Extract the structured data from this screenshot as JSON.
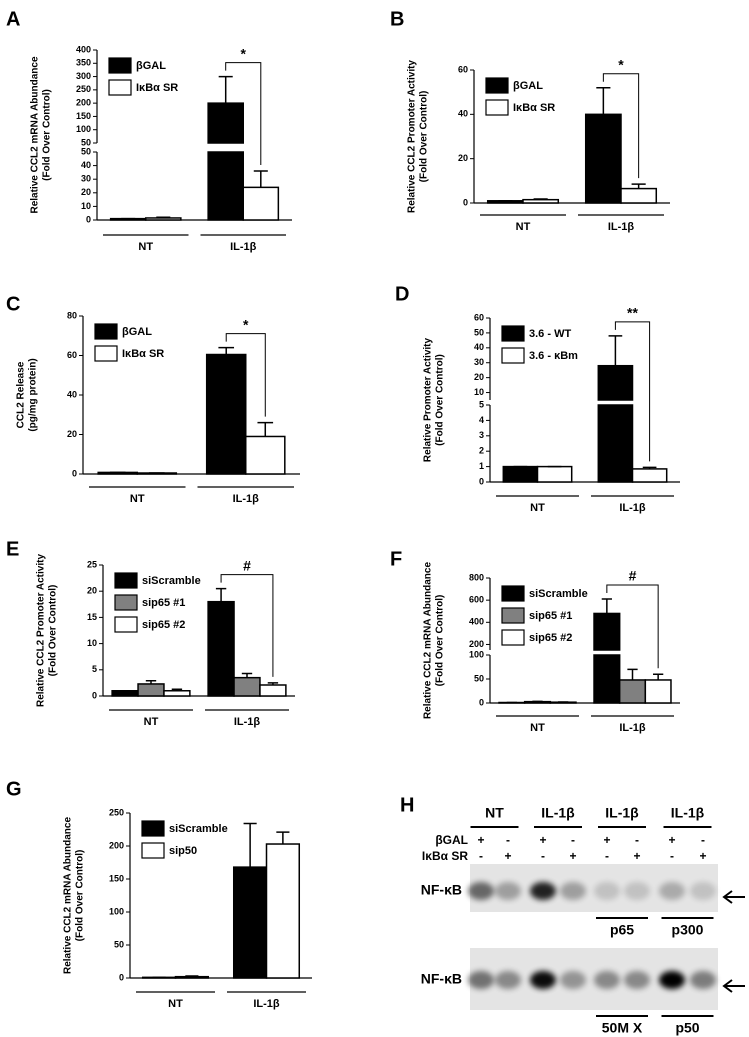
{
  "chart_data": [
    {
      "type": "bar",
      "label": "A",
      "ylabel": [
        "Relative CCL2 mRNA Abundance",
        "(Fold Over  Control)"
      ],
      "categories": [
        "NT",
        "IL-1β"
      ],
      "series": [
        {
          "name": "βGAL",
          "color": "#000000",
          "values": [
            1,
            200
          ],
          "errors": [
            0,
            100
          ]
        },
        {
          "name": "IκBα SR",
          "color": "#ffffff",
          "values": [
            1.5,
            24
          ],
          "errors": [
            0.5,
            12
          ]
        }
      ],
      "y_segments": [
        {
          "ylim": [
            0,
            50
          ],
          "yticks": [
            0,
            10,
            20,
            30,
            40,
            50
          ]
        },
        {
          "ylim": [
            50,
            400
          ],
          "yticks": [
            50,
            100,
            150,
            200,
            250,
            300,
            350,
            400
          ]
        }
      ],
      "significance": "*"
    },
    {
      "type": "bar",
      "label": "B",
      "ylabel": [
        "Relative CCL2 Promoter Activity",
        "(Fold Over  Control)"
      ],
      "categories": [
        "NT",
        "IL-1β"
      ],
      "series": [
        {
          "name": "βGAL",
          "color": "#000000",
          "values": [
            1,
            40
          ],
          "errors": [
            0,
            12
          ]
        },
        {
          "name": "IκBα SR",
          "color": "#ffffff",
          "values": [
            1.5,
            6.5
          ],
          "errors": [
            0.3,
            2
          ]
        }
      ],
      "ylim": [
        0,
        60
      ],
      "yticks": [
        0,
        20,
        40,
        60
      ],
      "significance": "*"
    },
    {
      "type": "bar",
      "label": "C",
      "ylabel": [
        "CCL2 Release",
        "(pg/mg protein)"
      ],
      "categories": [
        "NT",
        "IL-1β"
      ],
      "series": [
        {
          "name": "βGAL",
          "color": "#000000",
          "values": [
            0.8,
            60.5
          ],
          "errors": [
            0,
            3.5
          ]
        },
        {
          "name": "IκBα SR",
          "color": "#ffffff",
          "values": [
            0.5,
            19
          ],
          "errors": [
            0,
            7
          ]
        }
      ],
      "ylim": [
        0,
        80
      ],
      "yticks": [
        0,
        20,
        40,
        60,
        80
      ],
      "significance": "*"
    },
    {
      "type": "bar",
      "label": "D",
      "ylabel": [
        "Relative Promoter Activity",
        "(Fold Over  Control)"
      ],
      "categories": [
        "NT",
        "IL-1β"
      ],
      "series": [
        {
          "name": "3.6 - WT",
          "color": "#000000",
          "values": [
            1,
            28
          ],
          "errors": [
            0,
            20
          ]
        },
        {
          "name": "3.6 - κBm",
          "color": "#ffffff",
          "values": [
            1,
            0.85
          ],
          "errors": [
            0,
            0.1
          ]
        }
      ],
      "y_segments": [
        {
          "ylim": [
            0,
            5
          ],
          "yticks": [
            0,
            1,
            2,
            3,
            4,
            5
          ]
        },
        {
          "ylim": [
            5,
            60
          ],
          "yticks": [
            10,
            20,
            30,
            40,
            50,
            60
          ]
        }
      ],
      "significance": "**"
    },
    {
      "type": "bar",
      "label": "E",
      "ylabel": [
        "Relative CCL2 Promoter Activity",
        "(Fold Over Control)"
      ],
      "categories": [
        "NT",
        "IL-1β"
      ],
      "series": [
        {
          "name": "siScramble",
          "color": "#000000",
          "values": [
            1,
            18
          ],
          "errors": [
            0,
            2.5
          ]
        },
        {
          "name": "sip65 #1",
          "color": "#808080",
          "values": [
            2.3,
            3.5
          ],
          "errors": [
            0.6,
            0.8
          ]
        },
        {
          "name": "sip65 #2",
          "color": "#ffffff",
          "values": [
            1,
            2.1
          ],
          "errors": [
            0.3,
            0.4
          ]
        }
      ],
      "ylim": [
        0,
        25
      ],
      "yticks": [
        0,
        5,
        10,
        15,
        20,
        25
      ],
      "significance": "#"
    },
    {
      "type": "bar",
      "label": "F",
      "ylabel": [
        "Relative CCL2 mRNA Abundance",
        "(Fold Over Control)"
      ],
      "categories": [
        "NT",
        "IL-1β"
      ],
      "series": [
        {
          "name": "siScramble",
          "color": "#000000",
          "values": [
            1,
            480
          ],
          "errors": [
            0,
            130
          ]
        },
        {
          "name": "sip65 #1",
          "color": "#808080",
          "values": [
            2.8,
            48
          ],
          "errors": [
            0.7,
            22
          ]
        },
        {
          "name": "sip65 #2",
          "color": "#ffffff",
          "values": [
            1.7,
            48
          ],
          "errors": [
            0.4,
            12
          ]
        }
      ],
      "y_segments": [
        {
          "ylim": [
            0,
            100
          ],
          "yticks": [
            0,
            50,
            100
          ]
        },
        {
          "ylim": [
            150,
            800
          ],
          "yticks": [
            200,
            400,
            600,
            800
          ]
        }
      ],
      "significance": "#"
    },
    {
      "type": "bar",
      "label": "G",
      "ylabel": [
        "Relative CCL2 mRNA Abundance",
        "(Fold Over Control)"
      ],
      "categories": [
        "NT",
        "IL-1β"
      ],
      "series": [
        {
          "name": "siScramble",
          "color": "#000000",
          "values": [
            1,
            168
          ],
          "errors": [
            0,
            66
          ]
        },
        {
          "name": "sip50",
          "color": "#ffffff",
          "values": [
            2,
            203
          ],
          "errors": [
            1,
            18
          ]
        }
      ],
      "ylim": [
        0,
        250
      ],
      "yticks": [
        0,
        50,
        100,
        150,
        200,
        250
      ]
    }
  ],
  "blot": {
    "label": "H",
    "groups": [
      "NT",
      "IL-1β",
      "IL-1β",
      "IL-1β"
    ],
    "rows": [
      {
        "name": "βGAL",
        "signs": [
          "+",
          "-",
          "+",
          "-",
          "+",
          "-",
          "+",
          "-"
        ]
      },
      {
        "name": "IκBα SR",
        "signs": [
          "-",
          "+",
          "-",
          "+",
          "-",
          "+",
          "-",
          "+"
        ]
      }
    ],
    "blots": [
      {
        "name": "NF-κB",
        "probes": [
          "p65",
          "p300"
        ]
      },
      {
        "name": "NF-κB",
        "probes": [
          "50M X",
          "p50"
        ]
      }
    ]
  }
}
